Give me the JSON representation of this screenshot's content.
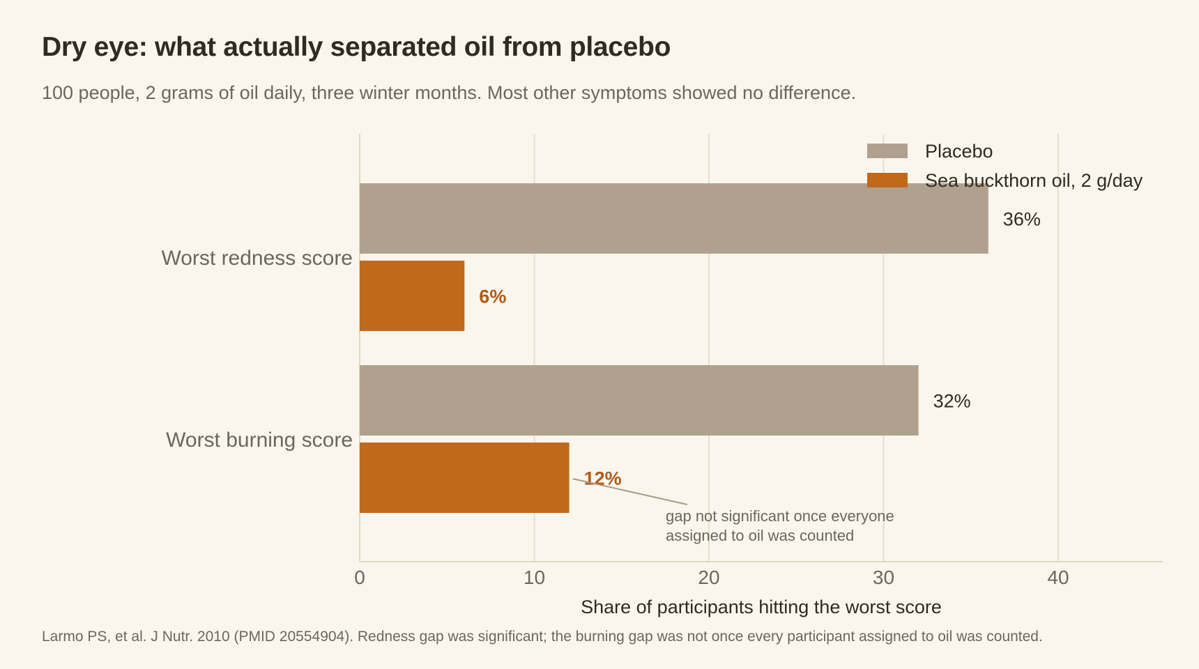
{
  "header": {
    "title": "Dry eye: what actually separated oil from placebo",
    "subtitle": "100 people, 2 grams of oil daily, three winter months. Most other symptoms showed no difference."
  },
  "footer": {
    "source": "Larmo PS, et al. J Nutr. 2010 (PMID 20554904). Redness gap was significant; the burning gap was not once every participant assigned to oil was counted."
  },
  "chart_data": {
    "type": "bar",
    "orientation": "horizontal",
    "categories": [
      "Worst redness score",
      "Worst burning score"
    ],
    "series": [
      {
        "name": "Placebo",
        "values": [
          36,
          32
        ],
        "color": "#b0a18e",
        "labels": [
          "36%",
          "32%"
        ]
      },
      {
        "name": "Sea buckthorn oil, 2 g/day",
        "values": [
          6,
          12
        ],
        "color": "#c0691d",
        "labels": [
          "6%",
          "12%"
        ]
      }
    ],
    "xlabel": "Share of participants hitting the worst score",
    "ylabel": "",
    "xlim": [
      0,
      46
    ],
    "xticks": [
      0,
      10,
      20,
      30,
      40
    ],
    "grid": true,
    "legend": "top-right",
    "annotation": {
      "lines": [
        "gap not significant once everyone",
        "assigned to oil was counted"
      ],
      "target_category": "Worst burning score",
      "target_series": "Sea buckthorn oil, 2 g/day"
    }
  }
}
